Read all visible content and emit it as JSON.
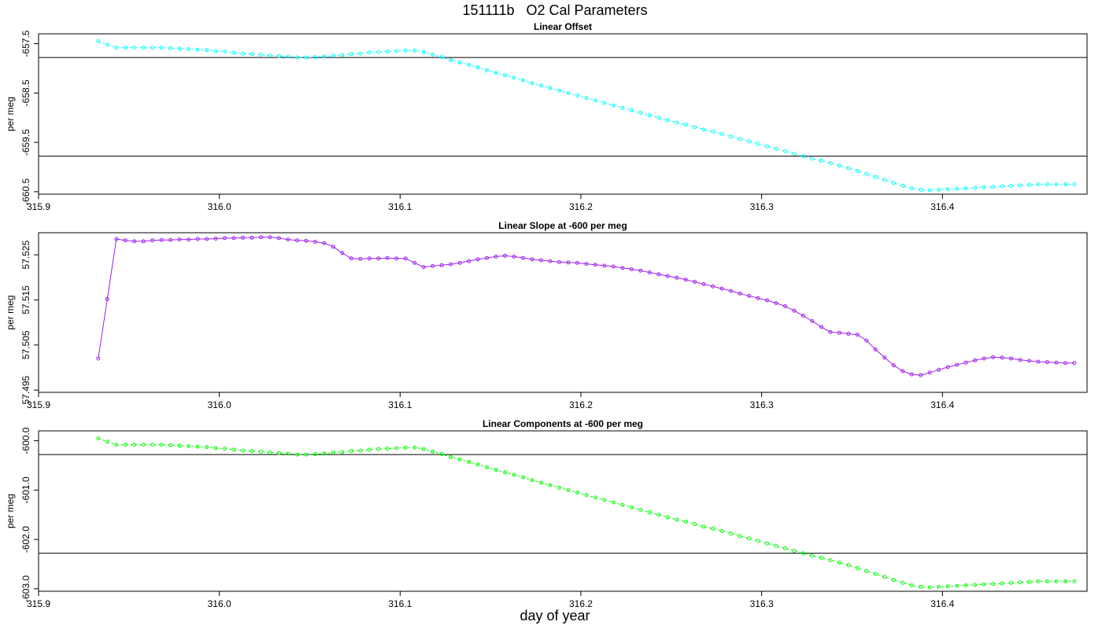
{
  "figure": {
    "title": "151111b   O2 Cal Parameters",
    "xlabel": "day of year"
  },
  "chart_data": [
    {
      "type": "line",
      "title": "Linear Offset",
      "ylabel": "per meg",
      "xlim": [
        315.9,
        316.48
      ],
      "ylim": [
        -660.55,
        -657.3
      ],
      "xticks": [
        "315.9",
        "316.0",
        "316.1",
        "316.2",
        "316.3",
        "316.4"
      ],
      "yticks": [
        "-657.5",
        "-658.5",
        "-659.5",
        "-660.5"
      ],
      "hlines": [
        -657.78,
        -659.78
      ],
      "color": "#00ffff",
      "series": [
        {
          "x": [
            315.933,
            315.938,
            315.943,
            315.948,
            315.953,
            315.958,
            315.963,
            315.968,
            315.973,
            315.978,
            315.983,
            315.988,
            315.993,
            315.998,
            316.003,
            316.008,
            316.013,
            316.018,
            316.023,
            316.028,
            316.033,
            316.038,
            316.043,
            316.048,
            316.053,
            316.058,
            316.063,
            316.068,
            316.073,
            316.078,
            316.083,
            316.088,
            316.093,
            316.098,
            316.103,
            316.108,
            316.113,
            316.118,
            316.123,
            316.128,
            316.133,
            316.138,
            316.143,
            316.148,
            316.153,
            316.158,
            316.163,
            316.168,
            316.173,
            316.178,
            316.183,
            316.188,
            316.193,
            316.198,
            316.203,
            316.208,
            316.213,
            316.218,
            316.223,
            316.228,
            316.233,
            316.238,
            316.243,
            316.248,
            316.253,
            316.258,
            316.263,
            316.268,
            316.273,
            316.278,
            316.283,
            316.288,
            316.293,
            316.298,
            316.303,
            316.308,
            316.313,
            316.318,
            316.323,
            316.328,
            316.333,
            316.338,
            316.343,
            316.348,
            316.353,
            316.358,
            316.363,
            316.368,
            316.373,
            316.378,
            316.383,
            316.388,
            316.393,
            316.398,
            316.403,
            316.408,
            316.413,
            316.418,
            316.423,
            316.428,
            316.433,
            316.438,
            316.443,
            316.448,
            316.453,
            316.458,
            316.463,
            316.468,
            316.473
          ],
          "y": [
            -657.45,
            -657.52,
            -657.58,
            -657.58,
            -657.58,
            -657.58,
            -657.58,
            -657.58,
            -657.59,
            -657.6,
            -657.61,
            -657.62,
            -657.63,
            -657.65,
            -657.66,
            -657.68,
            -657.7,
            -657.71,
            -657.72,
            -657.74,
            -657.75,
            -657.76,
            -657.78,
            -657.78,
            -657.77,
            -657.76,
            -657.74,
            -657.73,
            -657.71,
            -657.7,
            -657.68,
            -657.67,
            -657.66,
            -657.65,
            -657.64,
            -657.64,
            -657.67,
            -657.72,
            -657.77,
            -657.83,
            -657.88,
            -657.93,
            -657.98,
            -658.04,
            -658.09,
            -658.14,
            -658.19,
            -658.24,
            -658.3,
            -658.35,
            -658.4,
            -658.45,
            -658.5,
            -658.55,
            -658.6,
            -658.65,
            -658.7,
            -658.75,
            -658.8,
            -658.85,
            -658.9,
            -658.95,
            -659.0,
            -659.05,
            -659.1,
            -659.14,
            -659.19,
            -659.24,
            -659.28,
            -659.33,
            -659.38,
            -659.43,
            -659.48,
            -659.53,
            -659.58,
            -659.63,
            -659.68,
            -659.73,
            -659.78,
            -659.83,
            -659.87,
            -659.92,
            -659.97,
            -660.02,
            -660.08,
            -660.14,
            -660.2,
            -660.26,
            -660.32,
            -660.38,
            -660.43,
            -660.46,
            -660.47,
            -660.46,
            -660.45,
            -660.44,
            -660.43,
            -660.42,
            -660.41,
            -660.4,
            -660.39,
            -660.38,
            -660.37,
            -660.36,
            -660.35,
            -660.35,
            -660.35,
            -660.35,
            -660.35
          ]
        }
      ]
    },
    {
      "type": "line",
      "title": "Linear Slope at -600 per meg",
      "ylabel": "per meg",
      "xlim": [
        315.9,
        316.48
      ],
      "ylim": [
        57.4945,
        57.5299
      ],
      "xticks": [
        "315.9",
        "316.0",
        "316.1",
        "316.2",
        "316.3",
        "316.4"
      ],
      "yticks": [
        "57.495",
        "57.505",
        "57.515",
        "57.525"
      ],
      "hlines": [],
      "color": "#a020f0",
      "series": [
        {
          "x": [
            315.933,
            315.938,
            315.943,
            315.948,
            315.953,
            315.958,
            315.963,
            315.968,
            315.973,
            315.978,
            315.983,
            315.988,
            315.993,
            315.998,
            316.003,
            316.008,
            316.013,
            316.018,
            316.023,
            316.028,
            316.033,
            316.038,
            316.043,
            316.048,
            316.053,
            316.058,
            316.063,
            316.068,
            316.073,
            316.078,
            316.083,
            316.088,
            316.093,
            316.098,
            316.103,
            316.108,
            316.113,
            316.118,
            316.123,
            316.128,
            316.133,
            316.138,
            316.143,
            316.148,
            316.153,
            316.158,
            316.163,
            316.168,
            316.173,
            316.178,
            316.183,
            316.188,
            316.193,
            316.198,
            316.203,
            316.208,
            316.213,
            316.218,
            316.223,
            316.228,
            316.233,
            316.238,
            316.243,
            316.248,
            316.253,
            316.258,
            316.263,
            316.268,
            316.273,
            316.278,
            316.283,
            316.288,
            316.293,
            316.298,
            316.303,
            316.308,
            316.313,
            316.318,
            316.323,
            316.328,
            316.333,
            316.338,
            316.343,
            316.348,
            316.353,
            316.358,
            316.363,
            316.368,
            316.373,
            316.378,
            316.383,
            316.388,
            316.393,
            316.398,
            316.403,
            316.408,
            316.413,
            316.418,
            316.423,
            316.428,
            316.433,
            316.438,
            316.443,
            316.448,
            316.453,
            316.458,
            316.463,
            316.468,
            316.473
          ],
          "y": [
            57.502,
            57.5152,
            57.5285,
            57.5282,
            57.528,
            57.528,
            57.5282,
            57.5283,
            57.5283,
            57.5284,
            57.5284,
            57.5285,
            57.5285,
            57.5286,
            57.5287,
            57.5287,
            57.5288,
            57.5288,
            57.5289,
            57.5289,
            57.5287,
            57.5284,
            57.5282,
            57.5281,
            57.5279,
            57.5276,
            57.5268,
            57.5254,
            57.5242,
            57.5241,
            57.5242,
            57.5242,
            57.5243,
            57.5242,
            57.5242,
            57.5232,
            57.5223,
            57.5225,
            57.5227,
            57.5229,
            57.5232,
            57.5236,
            57.524,
            57.5243,
            57.5246,
            57.5248,
            57.5246,
            57.5243,
            57.524,
            57.5238,
            57.5236,
            57.5234,
            57.5233,
            57.5232,
            57.523,
            57.5228,
            57.5226,
            57.5224,
            57.5221,
            57.5218,
            57.5215,
            57.5211,
            57.5207,
            57.5203,
            57.5199,
            57.5195,
            57.519,
            57.5185,
            57.518,
            57.5175,
            57.517,
            57.5164,
            57.5159,
            57.5154,
            57.5149,
            57.5143,
            57.5136,
            57.5126,
            57.5115,
            57.5103,
            57.509,
            57.5079,
            57.5077,
            57.5075,
            57.5073,
            57.506,
            57.504,
            57.5022,
            57.5005,
            57.4992,
            57.4985,
            57.4983,
            57.4989,
            57.4995,
            57.5001,
            57.5006,
            57.5011,
            57.5016,
            57.502,
            57.5023,
            57.5022,
            57.502,
            57.5017,
            57.5015,
            57.5013,
            57.5012,
            57.5011,
            57.501,
            57.501
          ]
        }
      ]
    },
    {
      "type": "line",
      "title": "Linear Components at -600 per meg",
      "ylabel": "per meg",
      "xlim": [
        315.9,
        316.48
      ],
      "ylim": [
        -603.05,
        -599.8
      ],
      "xticks": [
        "315.9",
        "316.0",
        "316.1",
        "316.2",
        "316.3",
        "316.4"
      ],
      "yticks": [
        "-600.0",
        "-601.0",
        "-602.0",
        "-603.0"
      ],
      "hlines": [
        -600.28,
        -602.28
      ],
      "color": "#00ff00",
      "series": [
        {
          "x": [
            315.933,
            315.938,
            315.943,
            315.948,
            315.953,
            315.958,
            315.963,
            315.968,
            315.973,
            315.978,
            315.983,
            315.988,
            315.993,
            315.998,
            316.003,
            316.008,
            316.013,
            316.018,
            316.023,
            316.028,
            316.033,
            316.038,
            316.043,
            316.048,
            316.053,
            316.058,
            316.063,
            316.068,
            316.073,
            316.078,
            316.083,
            316.088,
            316.093,
            316.098,
            316.103,
            316.108,
            316.113,
            316.118,
            316.123,
            316.128,
            316.133,
            316.138,
            316.143,
            316.148,
            316.153,
            316.158,
            316.163,
            316.168,
            316.173,
            316.178,
            316.183,
            316.188,
            316.193,
            316.198,
            316.203,
            316.208,
            316.213,
            316.218,
            316.223,
            316.228,
            316.233,
            316.238,
            316.243,
            316.248,
            316.253,
            316.258,
            316.263,
            316.268,
            316.273,
            316.278,
            316.283,
            316.288,
            316.293,
            316.298,
            316.303,
            316.308,
            316.313,
            316.318,
            316.323,
            316.328,
            316.333,
            316.338,
            316.343,
            316.348,
            316.353,
            316.358,
            316.363,
            316.368,
            316.373,
            316.378,
            316.383,
            316.388,
            316.393,
            316.398,
            316.403,
            316.408,
            316.413,
            316.418,
            316.423,
            316.428,
            316.433,
            316.438,
            316.443,
            316.448,
            316.453,
            316.458,
            316.463,
            316.468,
            316.473
          ],
          "y": [
            -599.95,
            -600.02,
            -600.08,
            -600.08,
            -600.08,
            -600.08,
            -600.08,
            -600.08,
            -600.09,
            -600.1,
            -600.11,
            -600.12,
            -600.13,
            -600.15,
            -600.16,
            -600.18,
            -600.2,
            -600.21,
            -600.22,
            -600.24,
            -600.25,
            -600.26,
            -600.28,
            -600.28,
            -600.27,
            -600.26,
            -600.24,
            -600.23,
            -600.21,
            -600.2,
            -600.18,
            -600.17,
            -600.16,
            -600.15,
            -600.14,
            -600.14,
            -600.17,
            -600.22,
            -600.27,
            -600.33,
            -600.38,
            -600.43,
            -600.48,
            -600.54,
            -600.59,
            -600.64,
            -600.69,
            -600.74,
            -600.8,
            -600.85,
            -600.9,
            -600.95,
            -601.0,
            -601.05,
            -601.1,
            -601.15,
            -601.2,
            -601.25,
            -601.3,
            -601.35,
            -601.4,
            -601.45,
            -601.5,
            -601.55,
            -601.6,
            -601.64,
            -601.69,
            -601.74,
            -601.78,
            -601.83,
            -601.88,
            -601.93,
            -601.98,
            -602.03,
            -602.08,
            -602.13,
            -602.18,
            -602.23,
            -602.28,
            -602.33,
            -602.37,
            -602.42,
            -602.47,
            -602.52,
            -602.58,
            -602.64,
            -602.7,
            -602.76,
            -602.82,
            -602.88,
            -602.93,
            -602.96,
            -602.97,
            -602.96,
            -602.95,
            -602.94,
            -602.93,
            -602.92,
            -602.91,
            -602.9,
            -602.89,
            -602.88,
            -602.87,
            -602.86,
            -602.85,
            -602.85,
            -602.85,
            -602.85,
            -602.85
          ]
        }
      ]
    }
  ]
}
